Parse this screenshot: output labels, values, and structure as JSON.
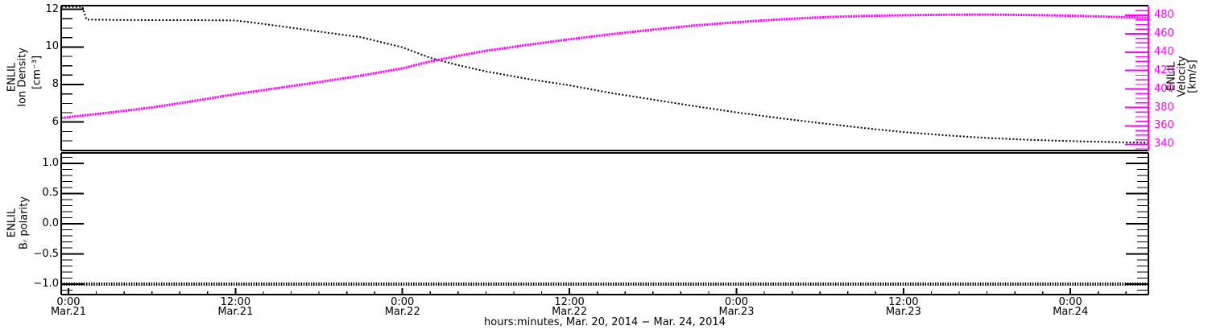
{
  "figure": {
    "background": "#ffffff",
    "axis_color": "#000000",
    "velocity_color": "#ff00ff"
  },
  "labels": {
    "density_axis_line1": "ENLIL",
    "density_axis_line2": "Ion Density",
    "density_axis_line3": "[cm⁻³]",
    "velocity_axis_line1": "ENLIL",
    "velocity_axis_line2": "Velocity",
    "velocity_axis_line3": "[km/s]",
    "polarity_axis_line1": "ENLIL",
    "polarity_axis_line2": "Bᵣ polarity",
    "x_title": "hours:minutes, Mar. 20, 2014 − Mar. 24, 2014"
  },
  "chart_data": [
    {
      "type": "line",
      "panel": "top",
      "xlabel": "hours:minutes, Mar. 20, 2014 − Mar. 24, 2014",
      "x_unit_hours_since": "Mar.21 00:00",
      "xlim": [
        -0.52,
        77.6
      ],
      "x_major_ticks": [
        0,
        12,
        24,
        36,
        48,
        60,
        72
      ],
      "x_major_tick_labels": [
        {
          "time": "0:00",
          "date": "Mar.21"
        },
        {
          "time": "12:00",
          "date": "Mar.21"
        },
        {
          "time": "0:00",
          "date": "Mar.22"
        },
        {
          "time": "12:00",
          "date": "Mar.22"
        },
        {
          "time": "0:00",
          "date": "Mar.23"
        },
        {
          "time": "12:00",
          "date": "Mar.23"
        },
        {
          "time": "0:00",
          "date": "Mar.24"
        }
      ],
      "x_minor_step": 2,
      "grid": false,
      "legend": "none",
      "series": [
        {
          "name": "ENLIL Ion Density",
          "axis": "left",
          "color": "#000000",
          "ylabel": "ENLIL Ion Density [cm⁻³]",
          "ylim": [
            4.49,
            12.2
          ],
          "yticks": [
            6,
            8,
            10,
            12
          ],
          "ytick_labels": [
            "6",
            "8",
            "10",
            "12"
          ],
          "y_minor_step": 0.5,
          "x": [
            -0.5,
            1.0,
            1.3,
            3,
            6,
            9,
            12,
            13,
            15,
            18,
            21,
            24,
            26,
            28,
            30,
            33,
            36,
            39,
            42,
            45,
            48,
            51,
            54,
            57,
            60,
            63,
            66,
            69,
            72,
            75,
            77.6
          ],
          "y": [
            12.45,
            12.45,
            11.46,
            11.44,
            11.43,
            11.43,
            11.41,
            11.32,
            11.13,
            10.82,
            10.52,
            9.98,
            9.42,
            9.03,
            8.7,
            8.3,
            7.96,
            7.55,
            7.2,
            6.85,
            6.52,
            6.22,
            5.95,
            5.7,
            5.47,
            5.3,
            5.16,
            5.06,
            4.99,
            4.94,
            4.9
          ]
        },
        {
          "name": "ENLIL Velocity",
          "axis": "right",
          "color": "#ff00ff",
          "ylabel": "ENLIL Velocity [km/s]",
          "ylim": [
            333.3,
            490.5
          ],
          "yticks": [
            340,
            360,
            380,
            400,
            420,
            440,
            460,
            480
          ],
          "ytick_labels": [
            "340",
            "360",
            "380",
            "400",
            "420",
            "440",
            "460",
            "480"
          ],
          "y_minor_step": 5,
          "x": [
            -0.5,
            0,
            3,
            6,
            9,
            12,
            15,
            18,
            21,
            24,
            26,
            28,
            30,
            33,
            36,
            39,
            42,
            45,
            48,
            51,
            54,
            57,
            60,
            63,
            66,
            69,
            72,
            75,
            77.6
          ],
          "y": [
            368.5,
            369.5,
            374.5,
            380,
            387,
            394.5,
            401,
            407.5,
            414.5,
            422.5,
            430,
            436,
            441.5,
            448,
            454,
            459.5,
            464.5,
            469,
            472.5,
            475.5,
            477.8,
            479.2,
            480.1,
            480.6,
            480.8,
            480.4,
            479.6,
            478.4,
            477.3
          ]
        }
      ]
    },
    {
      "type": "line",
      "panel": "bottom",
      "series": [
        {
          "name": "ENLIL Br polarity",
          "axis": "left",
          "color": "#000000",
          "ylabel": "ENLIL Bᵣ polarity",
          "ylim": [
            -1.173,
            1.173
          ],
          "yticks": [
            -1.0,
            -0.5,
            0.0,
            0.5,
            1.0
          ],
          "ytick_labels": [
            "−1.0",
            "−0.5",
            "0.0",
            "0.5",
            "1.0"
          ],
          "y_minor_step": 0.1,
          "x": [
            -0.52,
            77.6
          ],
          "y": [
            -1.0,
            -1.0
          ]
        }
      ]
    }
  ]
}
